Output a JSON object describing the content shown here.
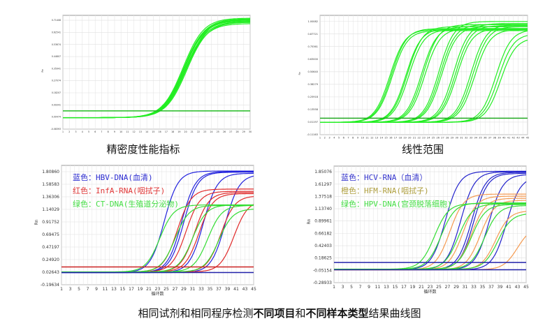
{
  "captions": {
    "top_left": "精密度性能指标",
    "top_right": "线性范围",
    "bottom_pre": "相同试剂和相同程序检测",
    "bottom_bold1": "不同项目",
    "bottom_mid": "和",
    "bottom_bold2": "不同样本类型",
    "bottom_post": "结果曲线图"
  },
  "chart_data": [
    {
      "type": "line",
      "title": "精密度性能指标",
      "ylabel": "Rn",
      "xlim": [
        1,
        30
      ],
      "ylim": [
        -0.08393,
        0.75
      ],
      "yticks": [
        "0.71408",
        "0.62541",
        "0.53674",
        "0.44807",
        "0.35941",
        "0.27074",
        "0.18207",
        "0.09341",
        "0.00474",
        "-0.08393"
      ],
      "xticks": [
        1,
        2,
        3,
        4,
        5,
        6,
        7,
        8,
        9,
        10,
        11,
        12,
        13,
        14,
        15,
        16,
        17,
        18,
        19,
        20,
        21,
        22,
        23,
        24,
        25,
        26,
        27,
        28,
        29,
        30
      ],
      "grid": true,
      "thresholds": [
        {
          "value": 0.05,
          "color": "#22bb22"
        }
      ],
      "series": [
        {
          "color": "#22ee22",
          "baseline": 0.0,
          "curves": [
            {
              "midpoint": 19.6,
              "plateau": 0.73
            },
            {
              "midpoint": 19.7,
              "plateau": 0.72
            },
            {
              "midpoint": 19.8,
              "plateau": 0.71
            },
            {
              "midpoint": 19.9,
              "plateau": 0.7
            },
            {
              "midpoint": 20.0,
              "plateau": 0.69
            },
            {
              "midpoint": 20.1,
              "plateau": 0.72
            },
            {
              "midpoint": 20.2,
              "plateau": 0.7
            },
            {
              "midpoint": 19.75,
              "plateau": 0.715
            },
            {
              "midpoint": 20.05,
              "plateau": 0.705
            },
            {
              "midpoint": 19.85,
              "plateau": 0.725
            }
          ]
        }
      ]
    },
    {
      "type": "line",
      "title": "线性范围",
      "ylabel": "Rn",
      "xlim": [
        1,
        45
      ],
      "ylim": [
        -0.11163,
        1.06
      ],
      "yticks": [
        "1.00082",
        "0.87721",
        "0.75361",
        "0.63000",
        "0.50640",
        "0.38279",
        "0.25918",
        "0.13558",
        "0.01197",
        "-0.11163"
      ],
      "xticks": [
        1,
        2,
        3,
        4,
        5,
        6,
        7,
        8,
        9,
        10,
        11,
        12,
        13,
        14,
        15,
        16,
        17,
        18,
        19,
        20,
        21,
        22,
        23,
        24,
        25,
        26,
        27,
        28,
        29,
        30,
        31,
        32,
        33,
        34,
        35,
        36,
        37,
        38,
        39,
        40,
        41,
        42,
        43,
        44,
        45
      ],
      "grid": true,
      "thresholds": [
        {
          "value": 0.05,
          "color": "#22aa22"
        }
      ],
      "series": [
        {
          "color": "#22ee22",
          "baseline": 0.01,
          "curves": [
            {
              "midpoint": 15.8,
              "plateau": 0.92
            },
            {
              "midpoint": 16.1,
              "plateau": 0.93
            },
            {
              "midpoint": 16.3,
              "plateau": 0.91
            },
            {
              "midpoint": 19.2,
              "plateau": 0.93
            },
            {
              "midpoint": 19.5,
              "plateau": 0.95
            },
            {
              "midpoint": 19.8,
              "plateau": 0.92
            },
            {
              "midpoint": 22.5,
              "plateau": 0.95
            },
            {
              "midpoint": 22.9,
              "plateau": 0.97
            },
            {
              "midpoint": 23.2,
              "plateau": 0.93
            },
            {
              "midpoint": 26.2,
              "plateau": 1.0
            },
            {
              "midpoint": 26.5,
              "plateau": 0.97
            },
            {
              "midpoint": 26.8,
              "plateau": 0.95
            },
            {
              "midpoint": 29.3,
              "plateau": 0.98
            },
            {
              "midpoint": 29.7,
              "plateau": 0.96
            },
            {
              "midpoint": 30.0,
              "plateau": 0.93
            },
            {
              "midpoint": 33.0,
              "plateau": 0.97
            },
            {
              "midpoint": 33.4,
              "plateau": 0.95
            },
            {
              "midpoint": 33.8,
              "plateau": 0.92
            },
            {
              "midpoint": 38.3,
              "plateau": 0.92
            },
            {
              "midpoint": 38.8,
              "plateau": 0.88
            },
            {
              "midpoint": 39.3,
              "plateau": 0.84
            }
          ]
        }
      ]
    },
    {
      "type": "line",
      "xlabel": "循环数",
      "ylabel": "Rn",
      "xlim": [
        1,
        45
      ],
      "ylim": [
        -0.19634,
        1.92
      ],
      "yticks": [
        "1.80860",
        "1.58583",
        "1.36306",
        "1.14029",
        "0.91752",
        "0.69475",
        "0.47197",
        "0.24920",
        "0.02643",
        "-0.19634"
      ],
      "xticks": [
        1,
        3,
        5,
        7,
        9,
        11,
        13,
        15,
        17,
        19,
        21,
        23,
        25,
        27,
        29,
        31,
        33,
        35,
        37,
        39,
        41,
        43,
        45
      ],
      "grid": true,
      "legend": [
        {
          "text": "蓝色：HBV-DNA(血清)",
          "color": "#2a2ad0"
        },
        {
          "text": "红色：InfA-RNA(咽拭子)",
          "color": "#e03838"
        },
        {
          "text": "绿色：CT-DNA(生殖道分泌物)",
          "color": "#44dd44"
        }
      ],
      "thresholds": [
        {
          "value": 0.12,
          "color": "#cc2222"
        },
        {
          "value": 0.02,
          "color": "#2222aa"
        }
      ],
      "series": [
        {
          "name": "HBV-DNA",
          "color": "#2222dd",
          "baseline": 0.02,
          "curves": [
            {
              "midpoint": 24.5,
              "plateau": 1.82
            },
            {
              "midpoint": 28.5,
              "plateau": 1.81
            },
            {
              "midpoint": 29,
              "plateau": 1.8
            },
            {
              "midpoint": 33.5,
              "plateau": 1.78
            },
            {
              "midpoint": 38.5,
              "plateau": 1.76
            }
          ]
        },
        {
          "name": "InfA-RNA",
          "color": "#e02b2b",
          "baseline": 0.03,
          "curves": [
            {
              "midpoint": 27.5,
              "plateau": 1.5
            },
            {
              "midpoint": 29.5,
              "plateau": 1.46
            },
            {
              "midpoint": 31.5,
              "plateau": 1.44
            },
            {
              "midpoint": 32.5,
              "plateau": 1.42
            },
            {
              "midpoint": 37.5,
              "plateau": 1.38
            },
            {
              "midpoint": 40.5,
              "plateau": 1.3
            }
          ]
        },
        {
          "name": "CT-DNA",
          "color": "#33dd33",
          "baseline": 0.03,
          "curves": [
            {
              "midpoint": 23.5,
              "plateau": 1.22
            },
            {
              "midpoint": 27,
              "plateau": 1.21
            },
            {
              "midpoint": 31,
              "plateau": 1.22
            },
            {
              "midpoint": 34.5,
              "plateau": 1.21
            },
            {
              "midpoint": 37,
              "plateau": 1.15
            }
          ]
        }
      ]
    },
    {
      "type": "line",
      "xlabel": "循环数",
      "ylabel": "Rn",
      "xlim": [
        1,
        45
      ],
      "ylim": [
        -0.28933,
        1.96
      ],
      "yticks": [
        "1.85076",
        "1.61297",
        "1.37518",
        "1.13740",
        "0.89961",
        "0.66182",
        "0.42403",
        "0.18625",
        "-0.05154",
        "-0.28933"
      ],
      "xticks": [
        1,
        3,
        5,
        7,
        9,
        11,
        13,
        15,
        17,
        19,
        21,
        23,
        25,
        27,
        29,
        31,
        33,
        35,
        37,
        39,
        41,
        43,
        45
      ],
      "grid": true,
      "legend": [
        {
          "text": "蓝色：HCV-RNA（血清）",
          "color": "#3333cc"
        },
        {
          "text": "橙色：HFM-RNA(咽拭子)",
          "color": "#b0a040"
        },
        {
          "text": "绿色：HPV-DNA(宫颈脱落细胞)",
          "color": "#44dd44"
        }
      ],
      "thresholds": [
        {
          "value": 0.1,
          "color": "#2222aa"
        },
        {
          "value": -0.04,
          "color": "#2222aa"
        }
      ],
      "series": [
        {
          "name": "HCV-RNA",
          "color": "#2222cc",
          "baseline": -0.04,
          "curves": [
            {
              "midpoint": 26.5,
              "plateau": 1.86
            },
            {
              "midpoint": 30,
              "plateau": 1.85
            },
            {
              "midpoint": 32.5,
              "plateau": 1.84
            },
            {
              "midpoint": 33,
              "plateau": 1.82
            },
            {
              "midpoint": 36.5,
              "plateau": 1.8
            },
            {
              "midpoint": 40.5,
              "plateau": 1.76
            }
          ]
        },
        {
          "name": "HFM-RNA",
          "color": "#f59a50",
          "baseline": -0.04,
          "curves": [
            {
              "midpoint": 27.5,
              "plateau": 1.42
            },
            {
              "midpoint": 30.5,
              "plateau": 1.38
            },
            {
              "midpoint": 32.5,
              "plateau": 1.34
            },
            {
              "midpoint": 34.5,
              "plateau": 1.3
            },
            {
              "midpoint": 38,
              "plateau": 1.1
            },
            {
              "midpoint": 43,
              "plateau": 0.8
            }
          ]
        },
        {
          "name": "HPV-DNA",
          "color": "#33dd33",
          "baseline": -0.03,
          "curves": [
            {
              "midpoint": 24,
              "plateau": 1.24
            },
            {
              "midpoint": 25.5,
              "plateau": 1.25
            },
            {
              "midpoint": 29.5,
              "plateau": 1.23
            },
            {
              "midpoint": 32.5,
              "plateau": 1.22
            },
            {
              "midpoint": 35.5,
              "plateau": 1.2
            },
            {
              "midpoint": 38.5,
              "plateau": 1.05
            }
          ]
        }
      ]
    }
  ]
}
